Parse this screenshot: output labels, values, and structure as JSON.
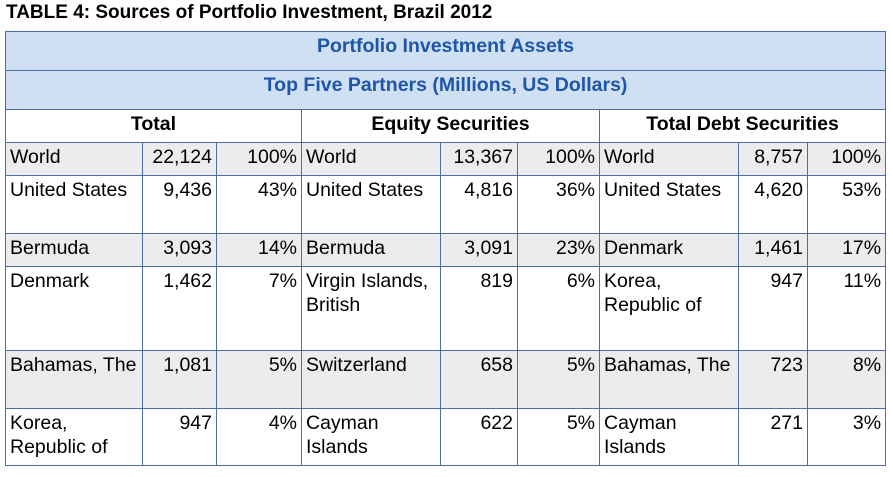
{
  "title": "TABLE 4: Sources of Portfolio Investment, Brazil 2012",
  "header1": "Portfolio Investment Assets",
  "header2": "Top Five Partners (Millions, US Dollars)",
  "groups": [
    "Total",
    "Equity Securities",
    "Total Debt Securities"
  ],
  "rows": [
    [
      "World",
      "22,124",
      "100%",
      "World",
      "13,367",
      "100%",
      "World",
      "8,757",
      "100%"
    ],
    [
      "United States",
      "9,436",
      "43%",
      "United States",
      "4,816",
      "36%",
      "United States",
      "4,620",
      "53%"
    ],
    [
      "Bermuda",
      "3,093",
      "14%",
      "Bermuda",
      "3,091",
      "23%",
      "Denmark",
      "1,461",
      "17%"
    ],
    [
      "Denmark",
      "1,462",
      "7%",
      "Virgin Islands, British",
      "819",
      "6%",
      "Korea, Republic of",
      "947",
      "11%"
    ],
    [
      "Bahamas, The",
      "1,081",
      "5%",
      "Switzerland",
      "658",
      "5%",
      "Bahamas, The",
      "723",
      "8%"
    ],
    [
      "Korea, Republic of",
      "947",
      "4%",
      "Cayman Islands",
      "622",
      "5%",
      "Cayman Islands",
      "271",
      "3%"
    ]
  ]
}
